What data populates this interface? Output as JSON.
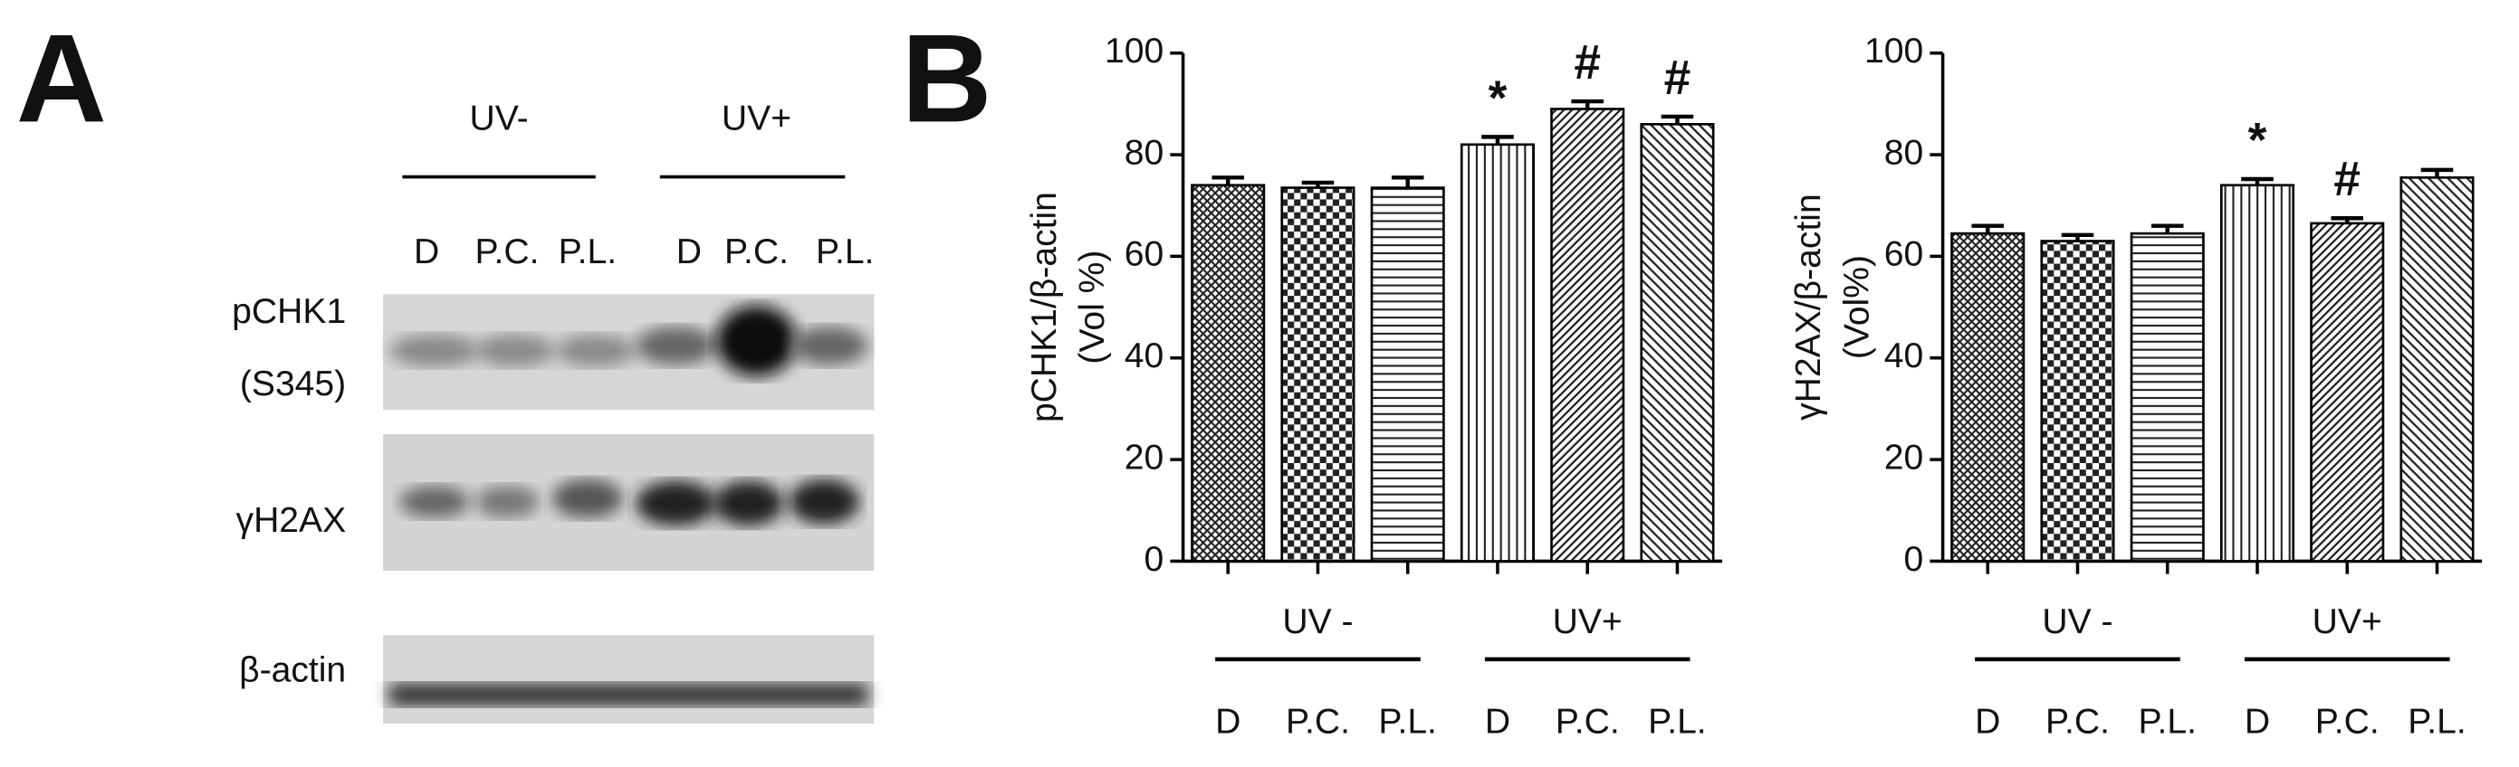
{
  "panel_a": {
    "label": "A",
    "groups": [
      "UV-",
      "UV+"
    ],
    "lanes": [
      "D",
      "P.C.",
      "P.L.",
      "D",
      "P.C.",
      "P.L."
    ],
    "rows": [
      "pCHK1",
      "(S345)",
      "γH2AX",
      "β-actin"
    ]
  },
  "panel_b_label": "B",
  "chart_data": [
    {
      "type": "bar",
      "ylabel": [
        "pCHK1/β-actin",
        "(Vol %)"
      ],
      "categories": [
        "D",
        "P.C.",
        "P.L.",
        "D",
        "P.C.",
        "P.L."
      ],
      "groups": [
        "UV -",
        "UV+"
      ],
      "values": [
        74,
        73.5,
        73.5,
        82,
        89,
        86
      ],
      "errors": [
        1.5,
        1,
        2,
        1.5,
        1.5,
        1.5
      ],
      "significance": [
        null,
        null,
        null,
        "*",
        "#",
        "#"
      ],
      "color": "#000000",
      "ylim": [
        0,
        100
      ],
      "yticks": [
        0,
        20,
        40,
        60,
        80,
        100
      ]
    },
    {
      "type": "bar",
      "ylabel": [
        "γH2AX/β-actin",
        "(Vol%)"
      ],
      "categories": [
        "D",
        "P.C.",
        "P.L.",
        "D",
        "P.C.",
        "P.L."
      ],
      "groups": [
        "UV -",
        "UV+"
      ],
      "values": [
        64.5,
        63,
        64.5,
        74,
        66.5,
        75.5
      ],
      "errors": [
        1.5,
        1.2,
        1.5,
        1.2,
        1,
        1.5
      ],
      "significance": [
        null,
        null,
        null,
        "*",
        "#",
        null
      ],
      "color": "#000000",
      "ylim": [
        0,
        100
      ],
      "yticks": [
        0,
        20,
        40,
        60,
        80,
        100
      ]
    }
  ]
}
